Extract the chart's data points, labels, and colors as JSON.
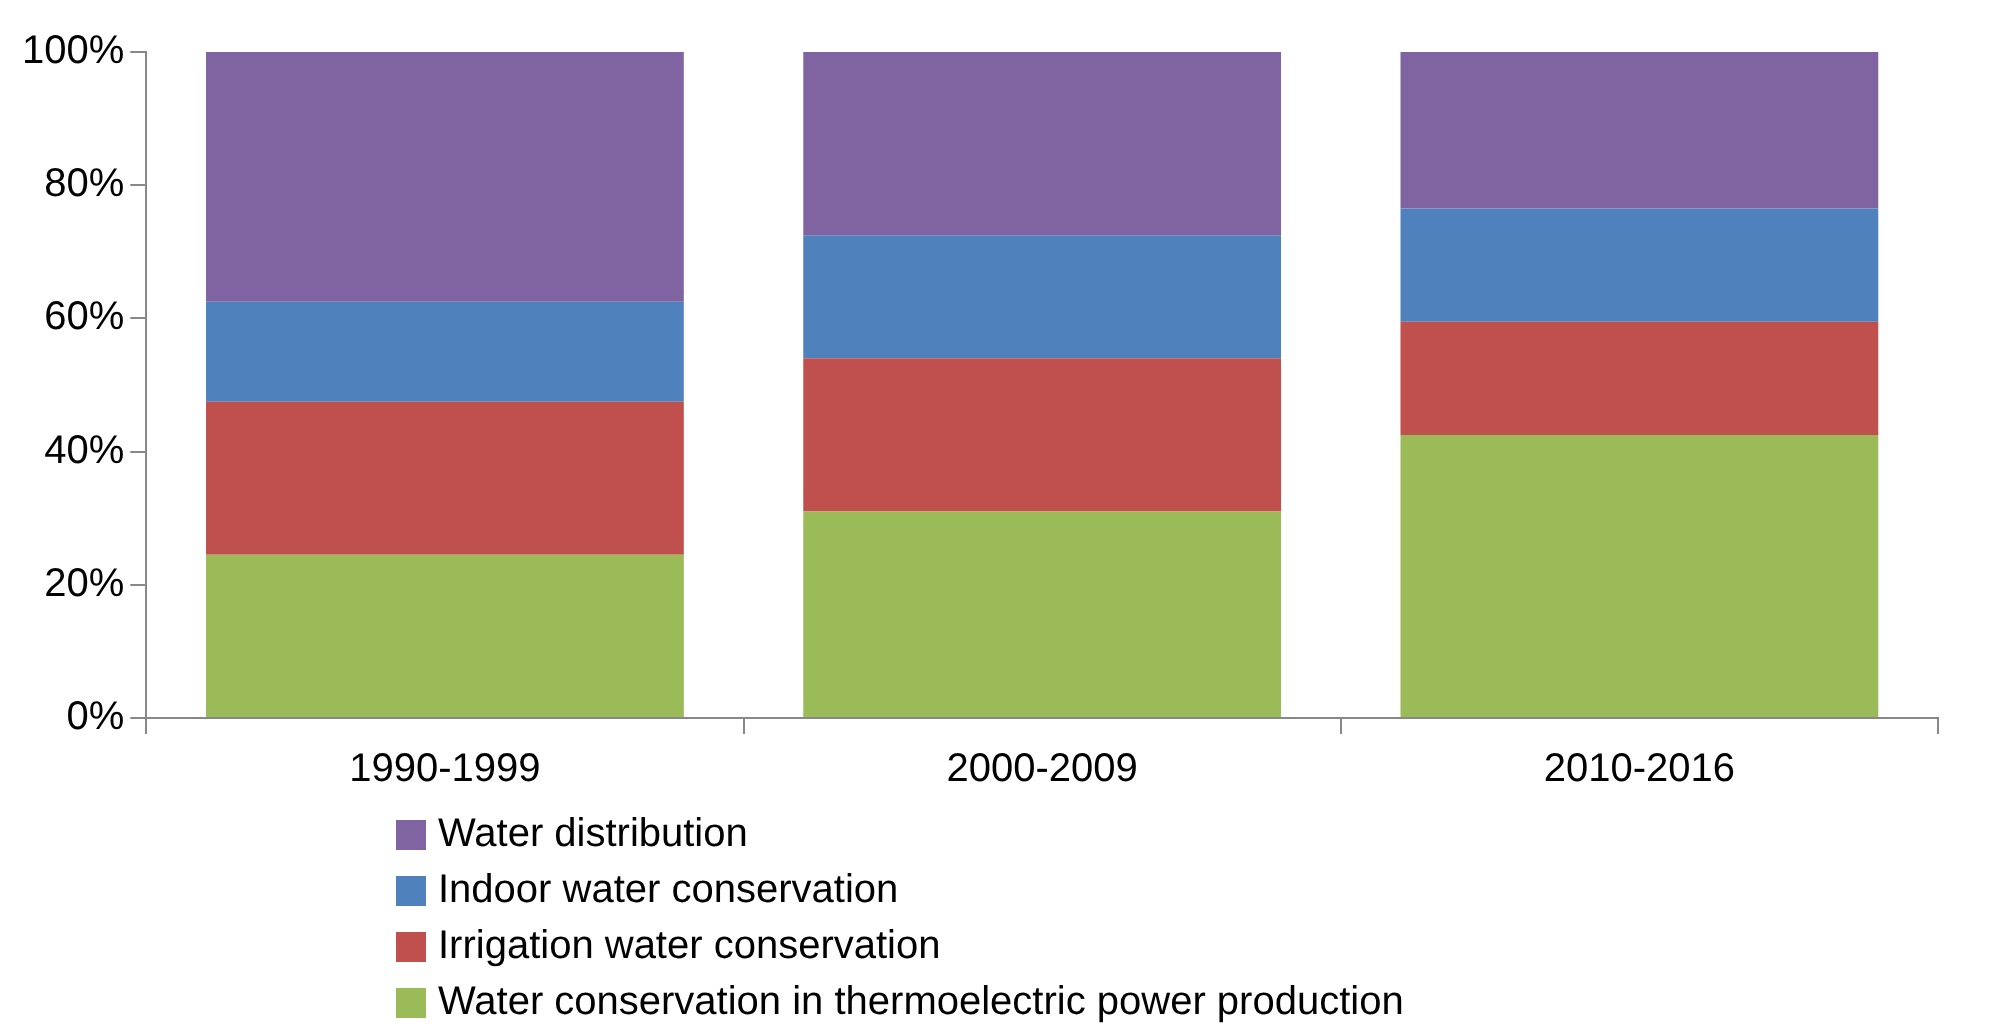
{
  "chart_data": {
    "type": "bar",
    "stacked": true,
    "categories": [
      "1990-1999",
      "2000-2009",
      "2010-2016"
    ],
    "series": [
      {
        "name": "Water conservation in thermoelectric power production",
        "color": "#9bbb59",
        "values": [
          24.5,
          31,
          42.5
        ]
      },
      {
        "name": "Irrigation water conservation",
        "color": "#c0504d",
        "values": [
          23,
          23,
          17
        ]
      },
      {
        "name": "Indoor water conservation",
        "color": "#4f81bd",
        "values": [
          15,
          18.5,
          17
        ]
      },
      {
        "name": "Water distribution",
        "color": "#8064a2",
        "values": [
          37.5,
          27.5,
          23.5
        ]
      }
    ],
    "ylim": [
      0,
      100
    ],
    "yticks": [
      {
        "value": 0,
        "label": "0%"
      },
      {
        "value": 20,
        "label": "20%"
      },
      {
        "value": 40,
        "label": "40%"
      },
      {
        "value": 60,
        "label": "60%"
      },
      {
        "value": 80,
        "label": "80%"
      },
      {
        "value": 100,
        "label": "100%"
      }
    ],
    "grid": false,
    "legend": "bottom"
  }
}
